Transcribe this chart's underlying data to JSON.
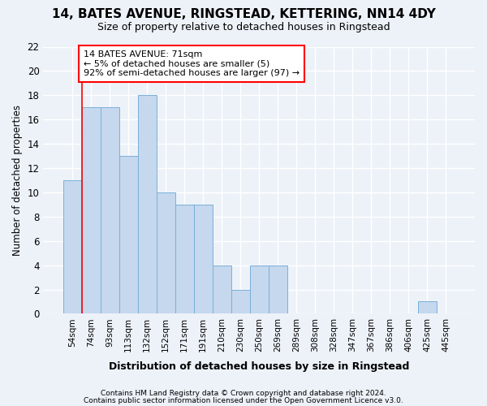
{
  "title1": "14, BATES AVENUE, RINGSTEAD, KETTERING, NN14 4DY",
  "title2": "Size of property relative to detached houses in Ringstead",
  "xlabel": "Distribution of detached houses by size in Ringstead",
  "ylabel": "Number of detached properties",
  "categories": [
    "54sqm",
    "74sqm",
    "93sqm",
    "113sqm",
    "132sqm",
    "152sqm",
    "171sqm",
    "191sqm",
    "210sqm",
    "230sqm",
    "250sqm",
    "269sqm",
    "289sqm",
    "308sqm",
    "328sqm",
    "347sqm",
    "367sqm",
    "386sqm",
    "406sqm",
    "425sqm",
    "445sqm"
  ],
  "values": [
    11,
    17,
    17,
    13,
    18,
    10,
    9,
    9,
    4,
    2,
    4,
    4,
    0,
    0,
    0,
    0,
    0,
    0,
    0,
    1,
    0
  ],
  "bar_color": "#c5d8ee",
  "bar_edge_color": "#7ab0d8",
  "ylim_min": 0,
  "ylim_max": 22,
  "yticks": [
    0,
    2,
    4,
    6,
    8,
    10,
    12,
    14,
    16,
    18,
    20,
    22
  ],
  "property_line_x": 0.5,
  "annotation_line1": "14 BATES AVENUE: 71sqm",
  "annotation_line2": "← 5% of detached houses are smaller (5)",
  "annotation_line3": "92% of semi-detached houses are larger (97) →",
  "footer_line1": "Contains HM Land Registry data © Crown copyright and database right 2024.",
  "footer_line2": "Contains public sector information licensed under the Open Government Licence v3.0.",
  "bg_color": "#edf2f9",
  "grid_color": "#ffffff",
  "bar_width": 1.0
}
